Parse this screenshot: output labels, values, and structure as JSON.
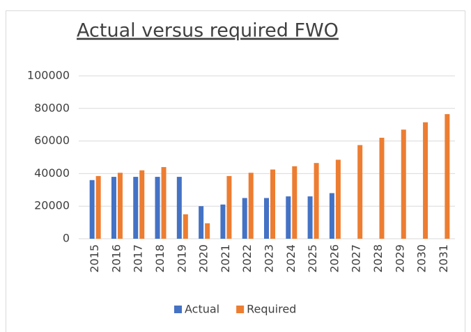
{
  "chart_data": {
    "type": "bar",
    "title": "Actual versus required FWO",
    "categories": [
      "2015",
      "2016",
      "2017",
      "2018",
      "2019",
      "2020",
      "2021",
      "2022",
      "2023",
      "2024",
      "2025",
      "2026",
      "2027",
      "2028",
      "2029",
      "2030",
      "2031"
    ],
    "series": [
      {
        "name": "Actual",
        "color": "#4472c4",
        "values": [
          36000,
          38000,
          38000,
          38000,
          38000,
          20000,
          21000,
          25000,
          25000,
          26000,
          26000,
          28000,
          null,
          null,
          null,
          null,
          null
        ]
      },
      {
        "name": "Required",
        "color": "#ed7d31",
        "values": [
          38500,
          40500,
          42000,
          44000,
          15000,
          9500,
          38500,
          40500,
          42500,
          44500,
          46500,
          48500,
          57500,
          62000,
          67000,
          71500,
          76500
        ]
      }
    ],
    "ylim": [
      0,
      100000
    ],
    "yticks": [
      0,
      20000,
      40000,
      60000,
      80000,
      100000
    ],
    "grid": true,
    "legend": "bottom"
  }
}
